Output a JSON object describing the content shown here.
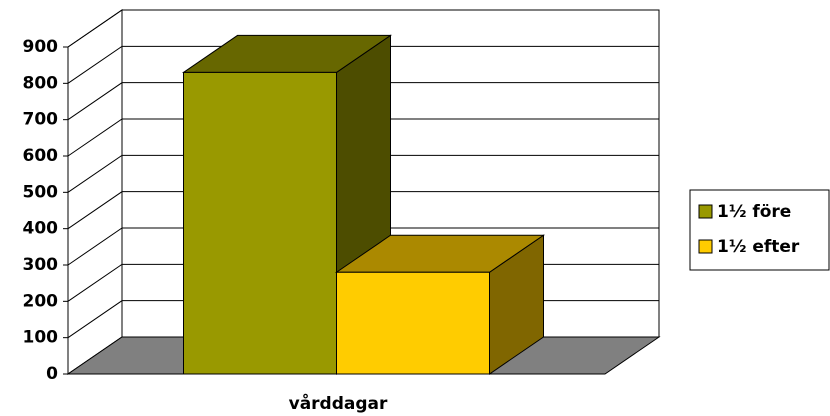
{
  "chart_data": {
    "type": "bar3d",
    "x_label": "vårddagar",
    "categories": [
      "vårddagar"
    ],
    "series": [
      {
        "name": "1½ före",
        "color": "#999900",
        "values": [
          830
        ]
      },
      {
        "name": "1½ efter",
        "color": "#ffcc00",
        "values": [
          280
        ]
      }
    ],
    "ylim": [
      0,
      900
    ],
    "yticks": [
      0,
      100,
      200,
      300,
      400,
      500,
      600,
      700,
      800,
      900
    ],
    "grid": true,
    "legend": "right"
  }
}
